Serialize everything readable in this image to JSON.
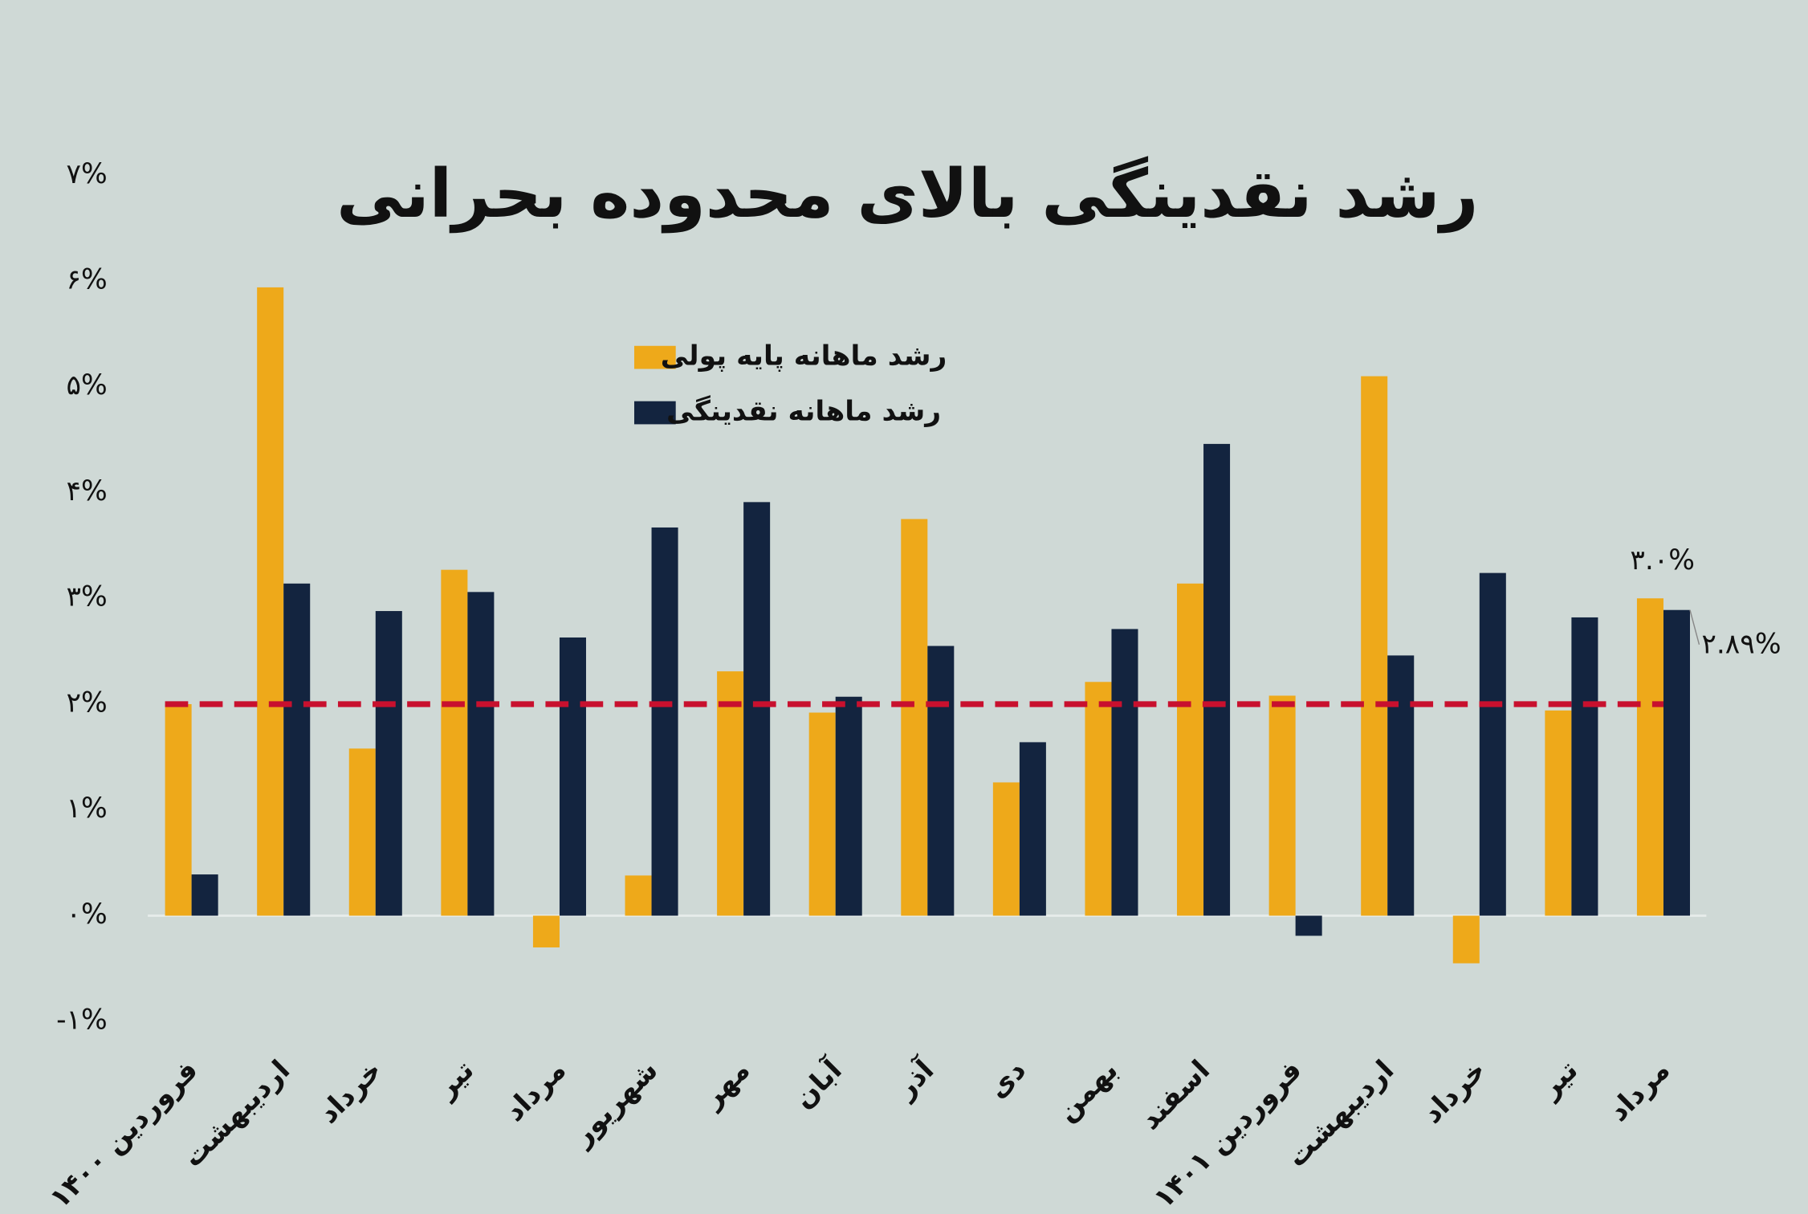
{
  "chart_data": {
    "type": "bar",
    "title": "رشد نقدینگی بالای محدوده بحرانی",
    "categories": [
      "فروردین ۱۴۰۰",
      "اردیبهشت",
      "خرداد",
      "تیر",
      "مرداد",
      "شهریور",
      "مهر",
      "آبان",
      "آذر",
      "دی",
      "بهمن",
      "اسفند",
      "فروردین ۱۴۰۱",
      "اردیبهشت",
      "خرداد",
      "تیر",
      "مرداد"
    ],
    "series": [
      {
        "name": "رشد ماهانه پایه پولی",
        "color": "#eea91a",
        "values": [
          2.0,
          5.94,
          1.58,
          3.27,
          -0.3,
          0.38,
          2.31,
          1.92,
          3.75,
          1.26,
          2.21,
          3.14,
          2.08,
          5.1,
          -0.45,
          1.94,
          3.0
        ],
        "value_labels": [
          null,
          null,
          null,
          null,
          null,
          null,
          null,
          null,
          null,
          null,
          null,
          null,
          null,
          null,
          null,
          null,
          "۳.۰%"
        ]
      },
      {
        "name": "رشد ماهانه نقدینگی",
        "color": "#13243f",
        "values": [
          0.39,
          3.14,
          2.88,
          3.06,
          2.63,
          3.67,
          3.91,
          2.07,
          2.55,
          1.64,
          2.71,
          4.46,
          -0.19,
          2.46,
          3.24,
          2.82,
          2.89
        ],
        "value_labels": [
          null,
          null,
          null,
          null,
          null,
          null,
          null,
          null,
          null,
          null,
          null,
          null,
          null,
          null,
          null,
          null,
          "۲.۸۹%"
        ]
      }
    ],
    "ylim": [
      -1,
      7
    ],
    "yticks": [
      {
        "value": -1,
        "label": "-۱%"
      },
      {
        "value": 0,
        "label": "۰%"
      },
      {
        "value": 1,
        "label": "۱%"
      },
      {
        "value": 2,
        "label": "۲%"
      },
      {
        "value": 3,
        "label": "۳%"
      },
      {
        "value": 4,
        "label": "۴%"
      },
      {
        "value": 5,
        "label": "۵%"
      },
      {
        "value": 6,
        "label": "۶%"
      },
      {
        "value": 7,
        "label": "۷%"
      }
    ],
    "reference_line": {
      "value": 2,
      "color": "#c8102e"
    }
  }
}
